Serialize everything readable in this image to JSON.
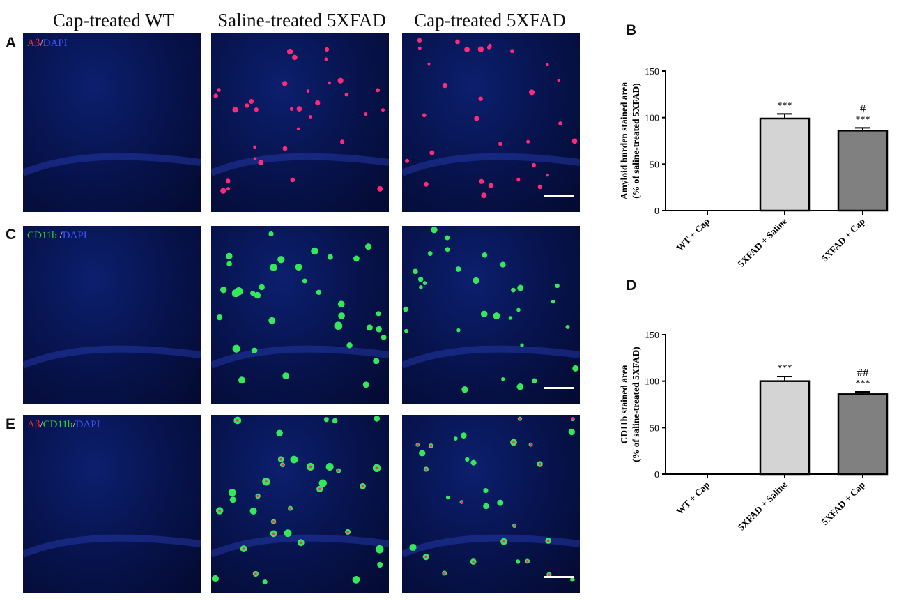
{
  "column_headers": [
    "Cap-treated WT",
    "Saline-treated 5XFAD",
    "Cap-treated 5XFAD"
  ],
  "rows": [
    {
      "letter": "A",
      "stain": [
        {
          "text": "Aβ",
          "color": "red"
        },
        {
          "text": "/",
          "color": "white"
        },
        {
          "text": "DAPI",
          "color": "blue"
        }
      ]
    },
    {
      "letter": "C",
      "stain": [
        {
          "text": "CD11b",
          "color": "green"
        },
        {
          "text": " /",
          "color": "white"
        },
        {
          "text": "DAPI",
          "color": "blue"
        }
      ]
    },
    {
      "letter": "E",
      "stain": [
        {
          "text": "Aβ",
          "color": "red"
        },
        {
          "text": "/",
          "color": "white"
        },
        {
          "text": "CD11b",
          "color": "green"
        },
        {
          "text": "/",
          "color": "white"
        },
        {
          "text": "DAPI",
          "color": "blue"
        }
      ]
    }
  ],
  "colors": {
    "bar_saline": "#d4d4d4",
    "bar_cap": "#808080",
    "dapi_bg": "#06124a",
    "plaque_red": "#ff2a7a",
    "microglia_green": "#35e85a"
  },
  "chart_data": [
    {
      "panel": "B",
      "type": "bar",
      "categories": [
        "WT + Cap",
        "5XFAD + Saline",
        "5XFAD + Cap"
      ],
      "values": [
        0,
        99,
        86
      ],
      "errors": [
        0,
        5,
        3
      ],
      "annotations": [
        [
          "",
          ""
        ],
        [
          "***",
          ""
        ],
        [
          "***",
          "#"
        ]
      ],
      "ylabel": [
        "Amyloid burden stained area",
        "(% of saline-treated 5XFAD)"
      ],
      "ylim": [
        0,
        150
      ],
      "yticks": [
        0,
        50,
        100,
        150
      ],
      "grid": false
    },
    {
      "panel": "D",
      "type": "bar",
      "categories": [
        "WT + Cap",
        "5XFAD + Saline",
        "5XFAD + Cap"
      ],
      "values": [
        0,
        100,
        86
      ],
      "errors": [
        0,
        5,
        2.5
      ],
      "annotations": [
        [
          "",
          ""
        ],
        [
          "***",
          ""
        ],
        [
          "***",
          "##"
        ]
      ],
      "ylabel": [
        "CD11b stained area",
        "(% of saline-treated 5XFAD)"
      ],
      "ylim": [
        0,
        150
      ],
      "yticks": [
        0,
        50,
        100,
        150
      ],
      "grid": false
    }
  ]
}
